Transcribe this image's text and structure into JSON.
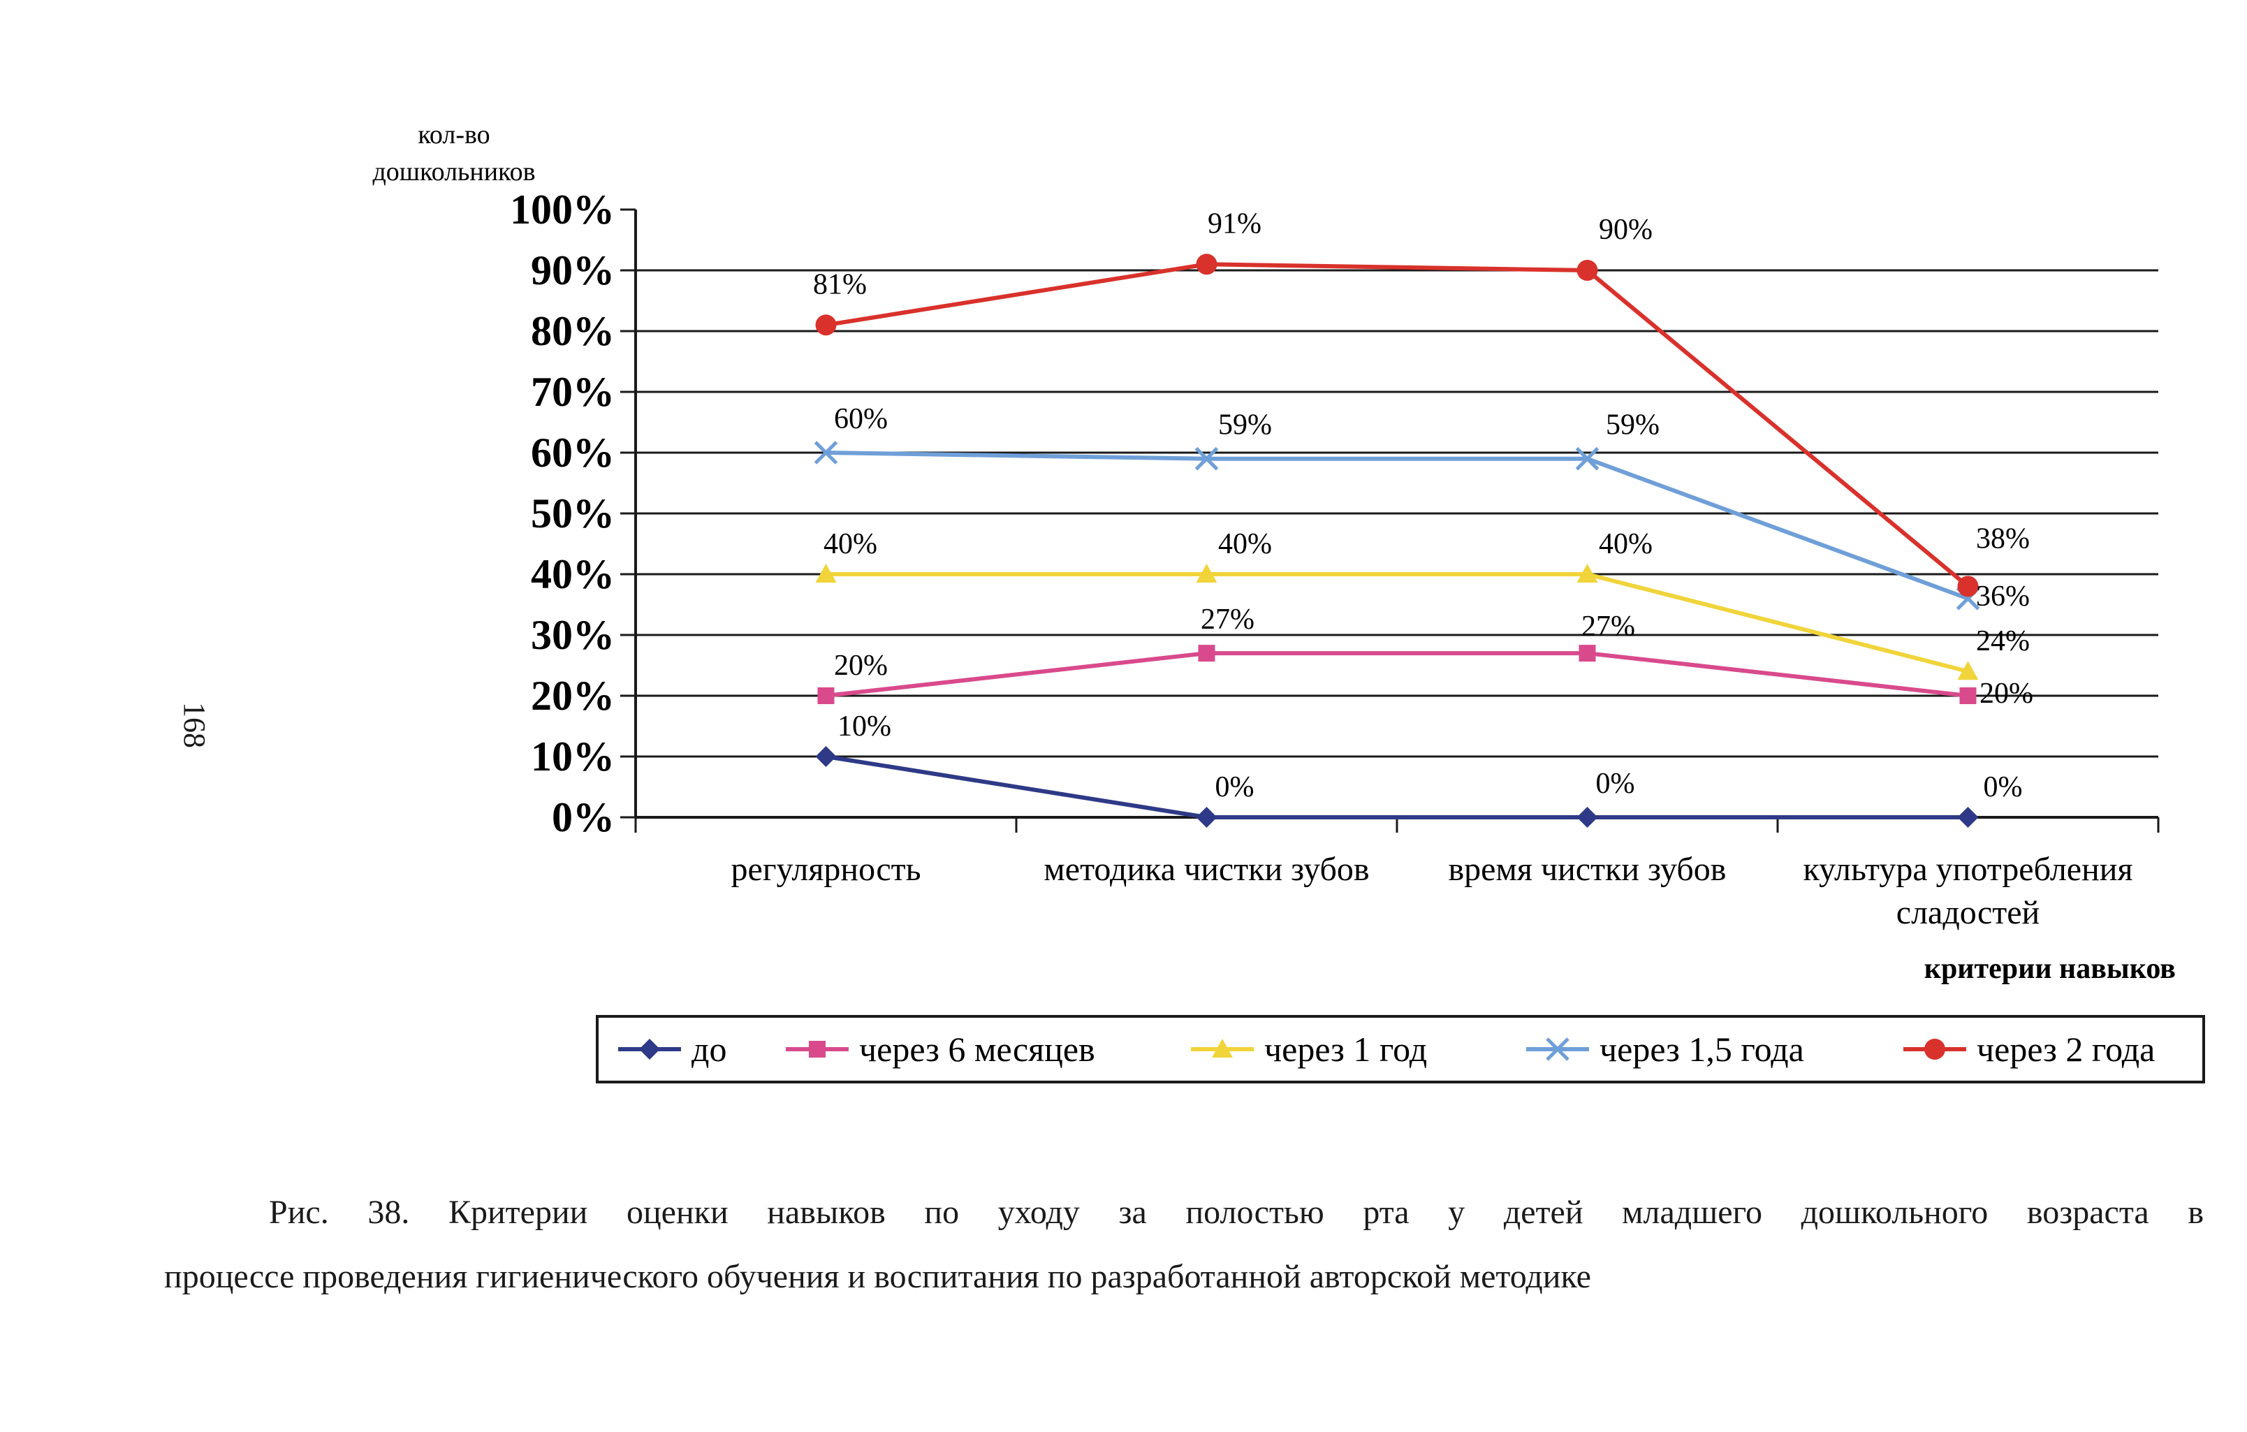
{
  "page_number": "168",
  "caption": {
    "line1": "Рис. 38. Критерии оценки навыков по уходу за полостью рта у детей младшего дошкольного возраста в",
    "line2": "процессе проведения гигиенического обучения и воспитания по разработанной авторской методике"
  },
  "chart_data": {
    "type": "line",
    "ylabel_line1": "кол-во",
    "ylabel_line2": "дошкольников",
    "xlabel": "критерии навыков",
    "categories": [
      [
        "регулярность"
      ],
      [
        "методика чистки зубов"
      ],
      [
        "время чистки зубов"
      ],
      [
        "культура употребления",
        "сладостей"
      ]
    ],
    "y_ticks": [
      "0%",
      "10%",
      "20%",
      "30%",
      "40%",
      "50%",
      "60%",
      "70%",
      "80%",
      "90%",
      "100%"
    ],
    "ylim": [
      0,
      100
    ],
    "grid": true,
    "legend_position": "bottom",
    "series": [
      {
        "name": "до",
        "values": [
          10,
          0,
          0,
          0
        ],
        "labels": [
          "10%",
          "0%",
          "0%",
          "0%"
        ],
        "color": "#2e3a87",
        "marker": "diamond"
      },
      {
        "name": "через 6 месяцев",
        "values": [
          20,
          27,
          27,
          20
        ],
        "labels": [
          "20%",
          "27%",
          "27%",
          "20%"
        ],
        "color": "#d94a8c",
        "marker": "square"
      },
      {
        "name": "через 1 год",
        "values": [
          40,
          40,
          40,
          24
        ],
        "labels": [
          "40%",
          "40%",
          "40%",
          "24%"
        ],
        "color": "#f0d43a",
        "marker": "triangle"
      },
      {
        "name": "через 1,5 года",
        "values": [
          60,
          59,
          59,
          36
        ],
        "labels": [
          "60%",
          "59%",
          "59%",
          "36%"
        ],
        "color": "#6f9fd8",
        "marker": "x"
      },
      {
        "name": "через 2 года",
        "values": [
          81,
          91,
          90,
          38
        ],
        "labels": [
          "81%",
          "91%",
          "90%",
          "38%"
        ],
        "color": "#d9312b",
        "marker": "circle"
      }
    ]
  }
}
